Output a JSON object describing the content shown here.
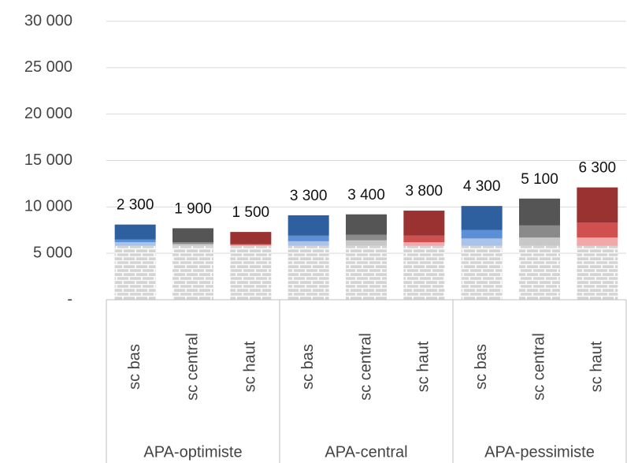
{
  "chart_data": {
    "type": "stacked-bar",
    "categories": [
      "sc bas",
      "sc central",
      "sc haut",
      "sc bas",
      "sc central",
      "sc haut",
      "sc bas",
      "sc central",
      "sc haut"
    ],
    "groups": [
      "APA-optimiste",
      "APA-central",
      "APA-pessimiste"
    ],
    "series": [
      {
        "pattern": "brick",
        "colors": [
          "#d9d9d9",
          "#d9d9d9",
          "#d9d9d9",
          "#d9d9d9",
          "#d9d9d9",
          "#d9d9d9",
          "#d9d9d9",
          "#d9d9d9",
          "#d9d9d9"
        ],
        "values": [
          5800,
          5800,
          5800,
          5800,
          5800,
          5800,
          5800,
          5800,
          5800
        ]
      },
      {
        "colors": [
          "#a9c4e8",
          "#c8c8c8",
          "#f0a8a8",
          "#a9c4e8",
          "#c8c8c8",
          "#f0a8a8",
          "#a9c4e8",
          "#c8c8c8",
          "#f0a8a8"
        ],
        "values": [
          400,
          200,
          100,
          500,
          600,
          400,
          800,
          900,
          900
        ]
      },
      {
        "colors": [
          "#5b8fd6",
          "#8a8a8a",
          "#d05050",
          "#5b8fd6",
          "#8a8a8a",
          "#d05050",
          "#5b8fd6",
          "#8a8a8a",
          "#d05050"
        ],
        "values": [
          300,
          200,
          100,
          600,
          600,
          700,
          900,
          1300,
          1600
        ]
      },
      {
        "colors": [
          "#2e5f9e",
          "#555555",
          "#9a3232",
          "#2e5f9e",
          "#555555",
          "#9a3232",
          "#2e5f9e",
          "#555555",
          "#9a3232"
        ],
        "values": [
          1600,
          1500,
          1300,
          2200,
          2200,
          2700,
          2600,
          2900,
          3800
        ]
      }
    ],
    "bar_labels": [
      "2 300",
      "1 900",
      "1 500",
      "3 300",
      "3 400",
      "3 800",
      "4 300",
      "5 100",
      "6 300"
    ],
    "ylim": [
      0,
      30000
    ],
    "yticks": [
      {
        "value": 0,
        "label": "-"
      },
      {
        "value": 5000,
        "label": "5 000"
      },
      {
        "value": 10000,
        "label": "10 000"
      },
      {
        "value": 15000,
        "label": "15 000"
      },
      {
        "value": 20000,
        "label": "20 000"
      },
      {
        "value": 25000,
        "label": "25 000"
      },
      {
        "value": 30000,
        "label": "30 000"
      }
    ],
    "grid": true
  }
}
